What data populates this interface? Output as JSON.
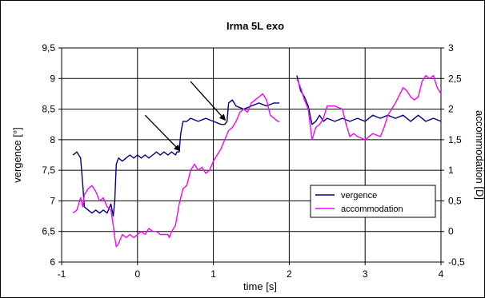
{
  "chart_data": {
    "type": "line",
    "title": "Irma 5L exo",
    "xlabel": "time [s]",
    "ylabel": "vergence [°]",
    "y2label": "accommodation [D]",
    "xlim": [
      -1,
      4
    ],
    "ylim": [
      6,
      9.5
    ],
    "y2lim": [
      -0.5,
      3
    ],
    "xticks": [
      "-1",
      "0",
      "1",
      "2",
      "3",
      "4"
    ],
    "yticks": [
      "6",
      "6,5",
      "7",
      "7,5",
      "8",
      "8,5",
      "9",
      "9,5"
    ],
    "y2ticks": [
      "-0,5",
      "0",
      "0,5",
      "1",
      "1,5",
      "2",
      "2,5",
      "3"
    ],
    "grid": true,
    "legend_position": "center-right",
    "series": [
      {
        "name": "vergence",
        "axis": "left",
        "color": "#000080",
        "segments": [
          [
            [
              -0.85,
              7.75
            ],
            [
              -0.8,
              7.8
            ],
            [
              -0.75,
              7.7
            ],
            [
              -0.72,
              7.25
            ],
            [
              -0.7,
              6.9
            ],
            [
              -0.65,
              6.85
            ],
            [
              -0.6,
              6.8
            ],
            [
              -0.55,
              6.85
            ],
            [
              -0.5,
              6.8
            ],
            [
              -0.45,
              6.85
            ],
            [
              -0.4,
              6.8
            ],
            [
              -0.35,
              6.95
            ],
            [
              -0.32,
              6.75
            ],
            [
              -0.3,
              7.0
            ],
            [
              -0.28,
              7.6
            ],
            [
              -0.25,
              7.7
            ],
            [
              -0.2,
              7.65
            ],
            [
              -0.15,
              7.7
            ],
            [
              -0.1,
              7.75
            ],
            [
              -0.05,
              7.7
            ],
            [
              0.0,
              7.75
            ],
            [
              0.05,
              7.7
            ],
            [
              0.1,
              7.75
            ],
            [
              0.15,
              7.7
            ],
            [
              0.2,
              7.75
            ],
            [
              0.25,
              7.8
            ],
            [
              0.3,
              7.75
            ],
            [
              0.35,
              7.8
            ],
            [
              0.4,
              7.75
            ],
            [
              0.45,
              7.8
            ],
            [
              0.5,
              7.75
            ],
            [
              0.52,
              7.8
            ],
            [
              0.55,
              7.8
            ],
            [
              0.57,
              8.1
            ],
            [
              0.6,
              8.3
            ],
            [
              0.65,
              8.3
            ],
            [
              0.7,
              8.35
            ],
            [
              0.8,
              8.3
            ],
            [
              0.9,
              8.35
            ],
            [
              1.0,
              8.3
            ],
            [
              1.1,
              8.25
            ],
            [
              1.15,
              8.25
            ],
            [
              1.18,
              8.3
            ],
            [
              1.2,
              8.6
            ],
            [
              1.25,
              8.65
            ],
            [
              1.3,
              8.55
            ],
            [
              1.4,
              8.5
            ],
            [
              1.5,
              8.55
            ],
            [
              1.6,
              8.6
            ],
            [
              1.7,
              8.55
            ],
            [
              1.8,
              8.6
            ],
            [
              1.87,
              8.6
            ]
          ],
          [
            [
              2.1,
              9.05
            ],
            [
              2.15,
              8.8
            ],
            [
              2.2,
              8.7
            ],
            [
              2.25,
              8.55
            ],
            [
              2.3,
              8.25
            ],
            [
              2.35,
              8.3
            ],
            [
              2.4,
              8.4
            ],
            [
              2.45,
              8.3
            ],
            [
              2.5,
              8.35
            ],
            [
              2.6,
              8.3
            ],
            [
              2.7,
              8.35
            ],
            [
              2.8,
              8.3
            ],
            [
              2.9,
              8.35
            ],
            [
              3.0,
              8.3
            ],
            [
              3.1,
              8.4
            ],
            [
              3.2,
              8.35
            ],
            [
              3.3,
              8.4
            ],
            [
              3.4,
              8.35
            ],
            [
              3.5,
              8.4
            ],
            [
              3.6,
              8.3
            ],
            [
              3.7,
              8.4
            ],
            [
              3.8,
              8.3
            ],
            [
              3.9,
              8.35
            ],
            [
              4.0,
              8.3
            ]
          ]
        ]
      },
      {
        "name": "accommodation",
        "axis": "right",
        "color": "#ff00ff",
        "segments": [
          [
            [
              -0.85,
              0.3
            ],
            [
              -0.8,
              0.35
            ],
            [
              -0.75,
              0.55
            ],
            [
              -0.72,
              0.4
            ],
            [
              -0.7,
              0.6
            ],
            [
              -0.65,
              0.7
            ],
            [
              -0.6,
              0.75
            ],
            [
              -0.55,
              0.65
            ],
            [
              -0.5,
              0.5
            ],
            [
              -0.45,
              0.55
            ],
            [
              -0.4,
              0.4
            ],
            [
              -0.35,
              0.35
            ],
            [
              -0.32,
              0.1
            ],
            [
              -0.3,
              -0.1
            ],
            [
              -0.28,
              -0.25
            ],
            [
              -0.25,
              -0.2
            ],
            [
              -0.2,
              -0.05
            ],
            [
              -0.15,
              -0.1
            ],
            [
              -0.1,
              -0.05
            ],
            [
              -0.05,
              -0.1
            ],
            [
              0.0,
              -0.05
            ],
            [
              0.05,
              0.0
            ],
            [
              0.1,
              -0.05
            ],
            [
              0.15,
              0.05
            ],
            [
              0.2,
              0.0
            ],
            [
              0.25,
              0.0
            ],
            [
              0.3,
              -0.05
            ],
            [
              0.35,
              -0.05
            ],
            [
              0.4,
              -0.05
            ],
            [
              0.42,
              -0.1
            ],
            [
              0.45,
              0.0
            ],
            [
              0.5,
              0.1
            ],
            [
              0.55,
              0.45
            ],
            [
              0.6,
              0.7
            ],
            [
              0.65,
              0.75
            ],
            [
              0.7,
              1.0
            ],
            [
              0.75,
              1.1
            ],
            [
              0.8,
              1.0
            ],
            [
              0.85,
              1.05
            ],
            [
              0.9,
              0.95
            ],
            [
              0.95,
              1.0
            ],
            [
              1.0,
              1.15
            ],
            [
              1.05,
              1.25
            ],
            [
              1.1,
              1.35
            ],
            [
              1.15,
              1.5
            ],
            [
              1.2,
              1.65
            ],
            [
              1.25,
              1.7
            ],
            [
              1.3,
              1.8
            ],
            [
              1.35,
              1.95
            ],
            [
              1.4,
              2.0
            ],
            [
              1.45,
              1.95
            ],
            [
              1.5,
              2.1
            ],
            [
              1.55,
              2.15
            ],
            [
              1.6,
              2.2
            ],
            [
              1.65,
              2.25
            ],
            [
              1.7,
              2.15
            ],
            [
              1.75,
              1.9
            ],
            [
              1.8,
              1.85
            ],
            [
              1.85,
              1.8
            ],
            [
              1.87,
              1.8
            ]
          ],
          [
            [
              2.1,
              2.5
            ],
            [
              2.15,
              2.35
            ],
            [
              2.2,
              2.15
            ],
            [
              2.25,
              2.0
            ],
            [
              2.3,
              1.5
            ],
            [
              2.35,
              1.7
            ],
            [
              2.4,
              1.75
            ],
            [
              2.45,
              1.85
            ],
            [
              2.5,
              2.05
            ],
            [
              2.6,
              2.05
            ],
            [
              2.7,
              2.0
            ],
            [
              2.75,
              1.75
            ],
            [
              2.8,
              1.55
            ],
            [
              2.85,
              1.6
            ],
            [
              2.9,
              1.55
            ],
            [
              3.0,
              1.5
            ],
            [
              3.1,
              1.6
            ],
            [
              3.2,
              1.55
            ],
            [
              3.25,
              1.7
            ],
            [
              3.3,
              1.9
            ],
            [
              3.4,
              2.1
            ],
            [
              3.5,
              2.35
            ],
            [
              3.55,
              2.3
            ],
            [
              3.6,
              2.2
            ],
            [
              3.65,
              2.15
            ],
            [
              3.7,
              2.2
            ],
            [
              3.75,
              2.45
            ],
            [
              3.8,
              2.55
            ],
            [
              3.85,
              2.5
            ],
            [
              3.9,
              2.55
            ],
            [
              3.95,
              2.35
            ],
            [
              4.0,
              2.25
            ]
          ]
        ]
      }
    ],
    "annotations": [
      {
        "type": "arrow",
        "from": [
          0.1,
          8.4
        ],
        "to": [
          0.55,
          7.83
        ]
      },
      {
        "type": "arrow",
        "from": [
          0.7,
          8.95
        ],
        "to": [
          1.15,
          8.33
        ]
      }
    ]
  }
}
